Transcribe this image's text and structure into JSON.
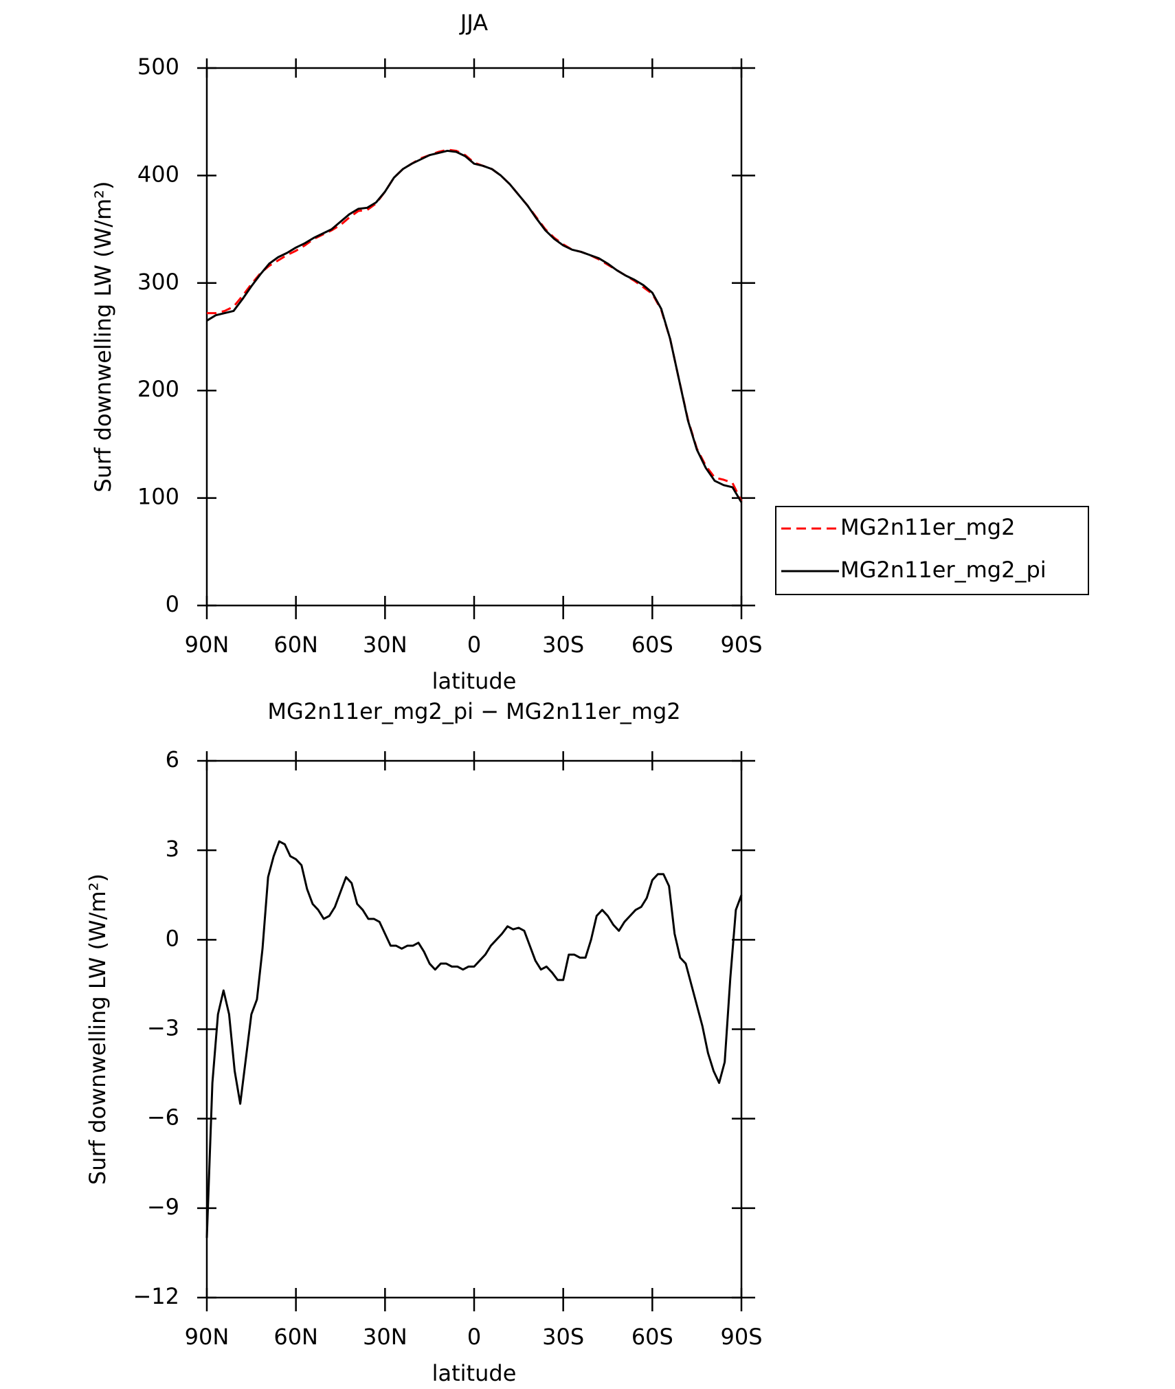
{
  "chart_data": [
    {
      "type": "line",
      "title": "JJA",
      "xlabel": "latitude",
      "ylabel": "Surf downwelling LW (W/m²)",
      "x": [
        90,
        87,
        84,
        81,
        78,
        75,
        72,
        69,
        66,
        63,
        60,
        57,
        54,
        51,
        48,
        45,
        42,
        39,
        36,
        33,
        30,
        27,
        24,
        21,
        18,
        15,
        12,
        9,
        6,
        3,
        0,
        -3,
        -6,
        -9,
        -12,
        -15,
        -18,
        -21,
        -24,
        -27,
        -30,
        -33,
        -36,
        -39,
        -42,
        -45,
        -48,
        -51,
        -54,
        -57,
        -60,
        -63,
        -66,
        -69,
        -72,
        -75,
        -78,
        -81,
        -84,
        -87,
        -90
      ],
      "series": [
        {
          "name": "MG2n11er_mg2",
          "color": "#ff0000",
          "dash": true,
          "values": [
            272,
            272,
            274,
            278,
            288,
            299,
            309,
            316,
            321,
            326,
            330,
            335,
            341,
            345,
            349,
            354,
            361,
            367,
            368,
            374,
            385,
            398,
            406,
            411,
            416,
            419,
            422,
            424,
            423,
            419,
            412,
            409,
            406,
            400,
            392,
            382,
            372,
            361,
            350,
            342,
            336,
            331,
            329,
            326,
            322,
            317,
            312,
            307,
            302,
            296,
            290,
            275,
            248,
            210,
            173,
            146,
            130,
            119,
            117,
            114,
            97
          ]
        },
        {
          "name": "MG2n11er_mg2_pi",
          "color": "#000000",
          "dash": false,
          "values": [
            265,
            270,
            272,
            274,
            285,
            297,
            308,
            318,
            324,
            328,
            333,
            337,
            342,
            346,
            350,
            357,
            364,
            369,
            370,
            375,
            385,
            398,
            406,
            411,
            415,
            419,
            421,
            423,
            422,
            418,
            411,
            409,
            406,
            400,
            392,
            382,
            372,
            360,
            349,
            341,
            335,
            331,
            329,
            326,
            323,
            318,
            312,
            307,
            303,
            298,
            291,
            276,
            248,
            210,
            172,
            145,
            128,
            116,
            112,
            110,
            96
          ]
        }
      ],
      "xlim": [
        90,
        -90
      ],
      "xticks": [
        {
          "value": 90,
          "label": "90N"
        },
        {
          "value": 60,
          "label": "60N"
        },
        {
          "value": 30,
          "label": "30N"
        },
        0,
        {
          "value": -30,
          "label": "30S"
        },
        {
          "value": -60,
          "label": "60S"
        },
        {
          "value": -90,
          "label": "90S"
        }
      ],
      "ylim": [
        0,
        500
      ],
      "yticks": [
        0,
        100,
        200,
        300,
        400,
        500
      ],
      "legend": "right"
    },
    {
      "type": "line",
      "title": "MG2n11er_mg2_pi − MG2n11er_mg2",
      "xlabel": "latitude",
      "ylabel": "Surf downwelling LW (W/m²)",
      "x": [
        90,
        88.125,
        86.25,
        84.375,
        82.5,
        80.625,
        78.75,
        76.875,
        75,
        73.125,
        71.25,
        69.375,
        67.5,
        65.625,
        63.75,
        61.875,
        60,
        58.125,
        56.25,
        54.375,
        52.5,
        50.625,
        48.75,
        46.875,
        45,
        43.125,
        41.25,
        39.375,
        37.5,
        35.625,
        33.75,
        31.875,
        30,
        28.125,
        26.25,
        24.375,
        22.5,
        20.625,
        18.75,
        16.875,
        15,
        13.125,
        11.25,
        9.375,
        7.5,
        5.625,
        3.75,
        1.875,
        0,
        -1.875,
        -3.75,
        -5.625,
        -7.5,
        -9.375,
        -11.25,
        -13.125,
        -15,
        -16.875,
        -18.75,
        -20.625,
        -22.5,
        -24.375,
        -26.25,
        -28.125,
        -30,
        -31.875,
        -33.75,
        -35.625,
        -37.5,
        -39.375,
        -41.25,
        -43.125,
        -45,
        -46.875,
        -48.75,
        -50.625,
        -52.5,
        -54.375,
        -56.25,
        -58.125,
        -60,
        -61.875,
        -63.75,
        -65.625,
        -67.5,
        -69.375,
        -71.25,
        -73.125,
        -75,
        -76.875,
        -78.75,
        -80.625,
        -82.5,
        -84.375,
        -86.25,
        -88.125,
        -90
      ],
      "series": [
        {
          "name": "MG2n11er_mg2_pi − MG2n11er_mg2",
          "color": "#000000",
          "values": [
            -10,
            -4.8,
            -2.5,
            -1.7,
            -2.5,
            -4.4,
            -5.5,
            -4,
            -2.5,
            -2,
            -0.3,
            2.1,
            2.8,
            3.3,
            3.2,
            2.8,
            2.7,
            2.5,
            1.7,
            1.2,
            1.0,
            0.7,
            0.8,
            1.1,
            1.6,
            2.1,
            1.9,
            1.2,
            1.0,
            0.7,
            0.7,
            0.6,
            0.2,
            -0.2,
            -0.2,
            -0.3,
            -0.2,
            -0.2,
            -0.1,
            -0.4,
            -0.8,
            -1.0,
            -0.8,
            -0.8,
            -0.9,
            -0.9,
            -1.0,
            -0.9,
            -0.9,
            -0.7,
            -0.5,
            -0.2,
            0.0,
            0.2,
            0.45,
            0.35,
            0.4,
            0.3,
            -0.2,
            -0.7,
            -1.0,
            -0.9,
            -1.1,
            -1.35,
            -1.35,
            -0.5,
            -0.5,
            -0.6,
            -0.6,
            0,
            0.8,
            1.0,
            0.8,
            0.5,
            0.3,
            0.6,
            0.8,
            1.0,
            1.1,
            1.4,
            2.0,
            2.2,
            2.2,
            1.8,
            0.2,
            -0.6,
            -0.8,
            -1.5,
            -2.2,
            -2.9,
            -3.8,
            -4.4,
            -4.8,
            -4.1,
            -1.3,
            1.0,
            1.5
          ]
        }
      ],
      "xlim": [
        90,
        -90
      ],
      "xticks": [
        {
          "value": 90,
          "label": "90N"
        },
        {
          "value": 60,
          "label": "60N"
        },
        {
          "value": 30,
          "label": "30N"
        },
        0,
        {
          "value": -30,
          "label": "30S"
        },
        {
          "value": -60,
          "label": "60S"
        },
        {
          "value": -90,
          "label": "90S"
        }
      ],
      "ylim": [
        -12,
        6
      ],
      "yticks": [
        {
          "value": -12,
          "label": "−12"
        },
        {
          "value": -9,
          "label": "−9"
        },
        {
          "value": -6,
          "label": "−6"
        },
        {
          "value": -3,
          "label": "−3"
        },
        0,
        3,
        6
      ]
    }
  ]
}
